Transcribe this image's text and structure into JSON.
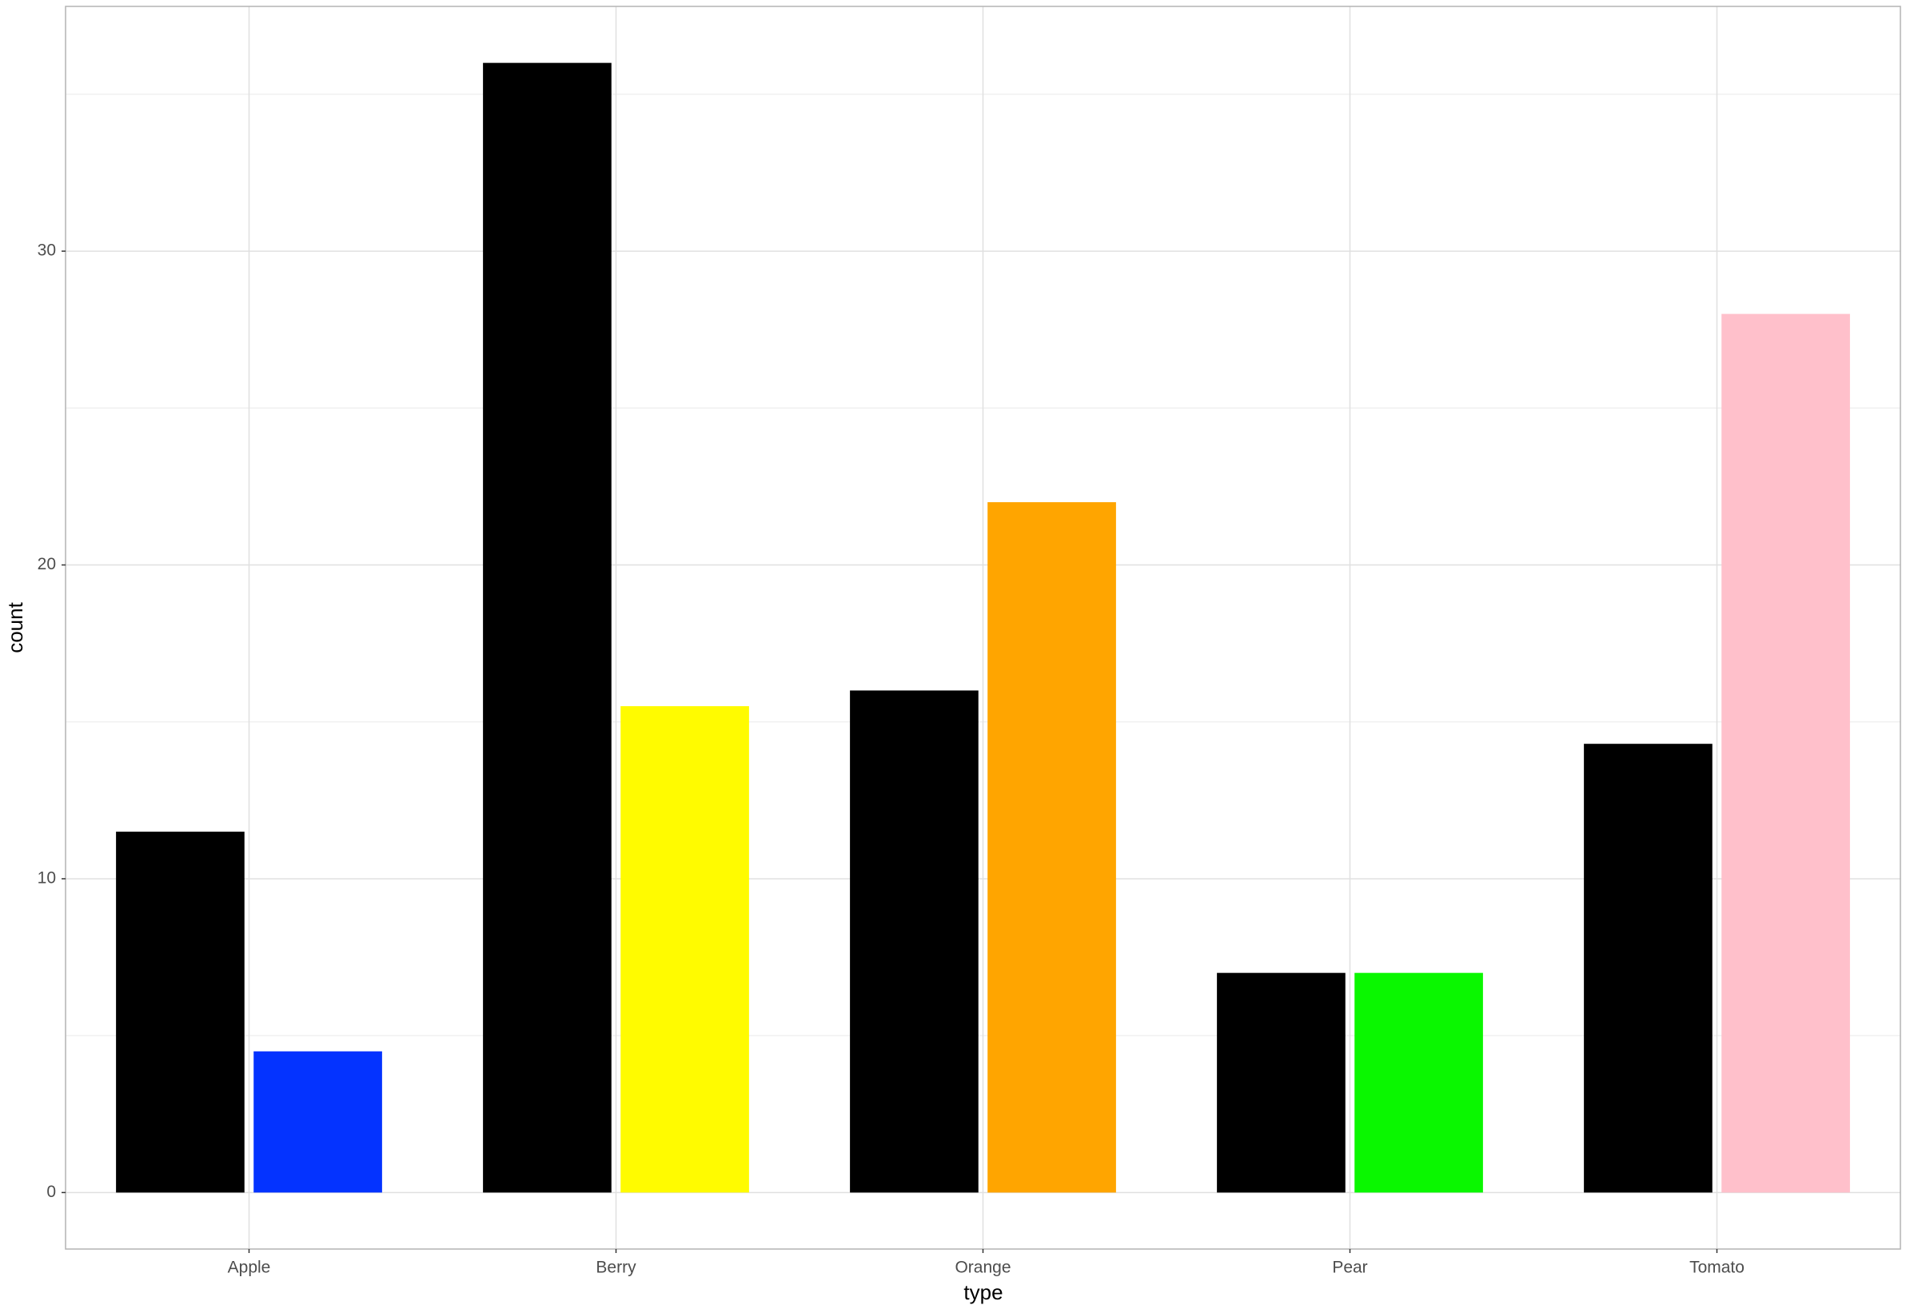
{
  "chart_data": {
    "type": "grouped_bar",
    "x_label": "type",
    "y_label": "count",
    "categories": [
      "Apple",
      "Berry",
      "Orange",
      "Pear",
      "Tomato"
    ],
    "series": [
      {
        "color": "#000000",
        "values": [
          11.5,
          36,
          16,
          7,
          14.3
        ]
      },
      {
        "colors": [
          "#0433ff",
          "#fffb00",
          "#ffa500",
          "#0af700",
          "#ffc0cb"
        ],
        "values": [
          4.5,
          15.5,
          22,
          7,
          28
        ]
      }
    ],
    "ylim": [
      -1.8,
      37.8
    ],
    "yticks": [
      0,
      10,
      20,
      30
    ],
    "grid": true
  }
}
